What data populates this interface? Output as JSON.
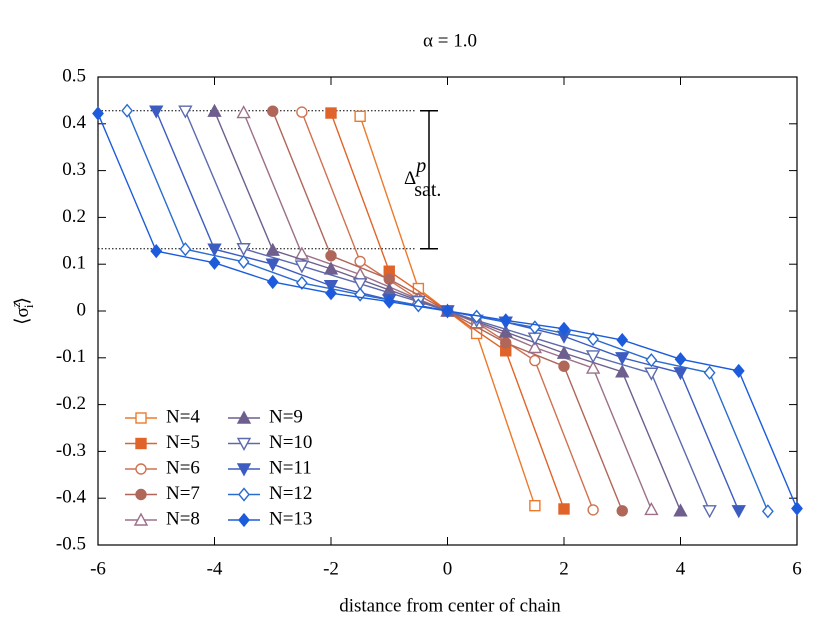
{
  "chart_data": {
    "type": "line",
    "title": "α = 1.0",
    "x_label": "distance from center of chain",
    "y_label": {
      "open": "⟨σ",
      "sup": "z",
      "sub": "i",
      "close": "⟩"
    },
    "annotation": {
      "base": "Δ",
      "sup": "p",
      "sub": "sat."
    },
    "reference_lines": [
      0.428,
      0.133
    ],
    "xlim": [
      -6,
      6
    ],
    "xticks": [
      -6,
      -4,
      -2,
      0,
      2,
      4,
      6
    ],
    "ylim": [
      -0.5,
      0.5
    ],
    "yticks": [
      -0.5,
      -0.4,
      -0.3,
      -0.2,
      -0.1,
      0,
      0.1,
      0.2,
      0.3,
      0.4,
      0.5
    ],
    "legend": "lower left",
    "series": [
      {
        "name": "N=4",
        "color": "#ec7a2c",
        "marker": "square",
        "filled": false,
        "x": [
          -1.5,
          -0.5,
          0.5,
          1.5
        ],
        "values": [
          0.416,
          0.048,
          -0.048,
          -0.416
        ]
      },
      {
        "name": "N=5",
        "color": "#e0642a",
        "marker": "square",
        "filled": true,
        "x": [
          -2,
          -1,
          0,
          1,
          2
        ],
        "values": [
          0.423,
          0.085,
          0,
          -0.085,
          -0.423
        ]
      },
      {
        "name": "N=6",
        "color": "#cf7250",
        "marker": "circle",
        "filled": false,
        "x": [
          -2.5,
          -1.5,
          -0.5,
          0.5,
          1.5,
          2.5
        ],
        "values": [
          0.425,
          0.106,
          0.025,
          -0.025,
          -0.106,
          -0.425
        ]
      },
      {
        "name": "N=7",
        "color": "#b06658",
        "marker": "circle",
        "filled": true,
        "x": [
          -3,
          -2,
          -1,
          0,
          1,
          2,
          3
        ],
        "values": [
          0.427,
          0.118,
          0.068,
          0,
          -0.068,
          -0.118,
          -0.427
        ]
      },
      {
        "name": "N=8",
        "color": "#9c7088",
        "marker": "triangle",
        "filled": false,
        "x": [
          -3.5,
          -2.5,
          -1.5,
          -0.5,
          0.5,
          1.5,
          2.5,
          3.5
        ],
        "values": [
          0.424,
          0.122,
          0.078,
          0.025,
          -0.025,
          -0.078,
          -0.122,
          -0.424
        ]
      },
      {
        "name": "N=9",
        "color": "#6e5f8e",
        "marker": "triangle",
        "filled": true,
        "x": [
          -4,
          -3,
          -2,
          -1,
          0,
          1,
          2,
          3,
          4
        ],
        "values": [
          0.427,
          0.13,
          0.09,
          0.045,
          0,
          -0.045,
          -0.09,
          -0.13,
          -0.427
        ]
      },
      {
        "name": "N=10",
        "color": "#5c6aae",
        "marker": "down",
        "filled": false,
        "x": [
          -4.5,
          -3.5,
          -2.5,
          -1.5,
          -0.5,
          0.5,
          1.5,
          2.5,
          3.5,
          4.5
        ],
        "values": [
          0.427,
          0.133,
          0.096,
          0.058,
          0.02,
          -0.02,
          -0.058,
          -0.096,
          -0.133,
          -0.427
        ]
      },
      {
        "name": "N=11",
        "color": "#3d5cc0",
        "marker": "down",
        "filled": true,
        "x": [
          -5,
          -4,
          -3,
          -2,
          -1,
          0,
          1,
          2,
          3,
          4,
          5
        ],
        "values": [
          0.427,
          0.132,
          0.1,
          0.054,
          0.024,
          0,
          -0.024,
          -0.054,
          -0.1,
          -0.132,
          -0.427
        ]
      },
      {
        "name": "N=12",
        "color": "#2a6ccf",
        "marker": "diamond",
        "filled": false,
        "x": [
          -5.5,
          -4.5,
          -3.5,
          -2.5,
          -1.5,
          -0.5,
          0.5,
          1.5,
          2.5,
          3.5,
          4.5,
          5.5
        ],
        "values": [
          0.428,
          0.132,
          0.105,
          0.06,
          0.035,
          0.012,
          -0.012,
          -0.035,
          -0.06,
          -0.105,
          -0.132,
          -0.428
        ]
      },
      {
        "name": "N=13",
        "color": "#1c5cdc",
        "marker": "diamond",
        "filled": true,
        "x": [
          -6,
          -5,
          -4,
          -3,
          -2,
          -1,
          0,
          1,
          2,
          3,
          4,
          5,
          6
        ],
        "values": [
          0.422,
          0.128,
          0.103,
          0.062,
          0.038,
          0.02,
          0,
          -0.02,
          -0.038,
          -0.062,
          -0.103,
          -0.128,
          -0.422
        ]
      }
    ]
  }
}
